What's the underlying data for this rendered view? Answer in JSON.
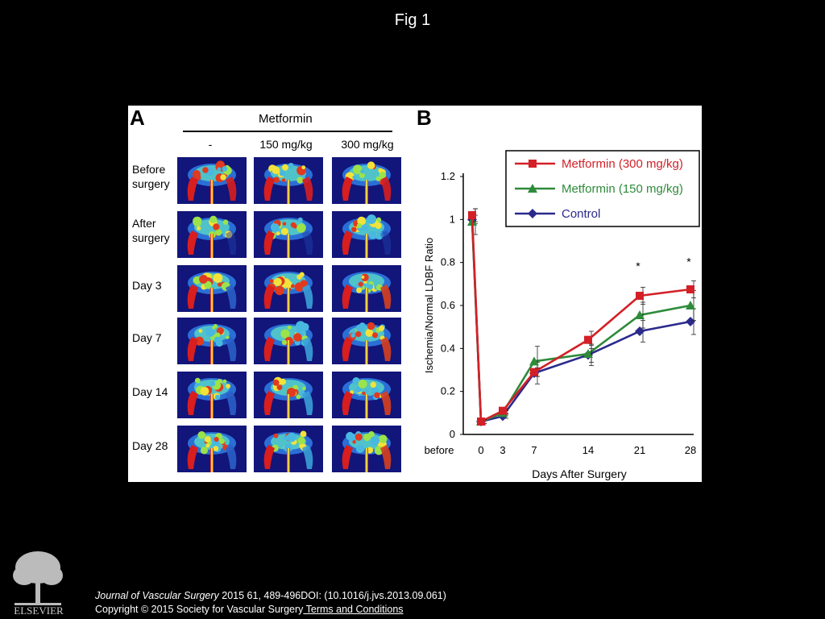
{
  "figure_title": "Fig 1",
  "panel_a": {
    "letter": "A",
    "drug": "Metformin",
    "doses": [
      "-",
      "150 mg/kg",
      "300 mg/kg"
    ],
    "rows": [
      "Before surgery",
      "After surgery",
      "Day 3",
      "Day 7",
      "Day 14",
      "Day 28"
    ]
  },
  "panel_b": {
    "letter": "B"
  },
  "chart_data": {
    "type": "line",
    "title": "",
    "xlabel": "Days After Surgery",
    "ylabel": "Ischemia/Normal LDBF Ratio",
    "categories": [
      "before",
      "0",
      "3",
      "7",
      "14",
      "21",
      "28"
    ],
    "ylim": [
      0,
      1.2
    ],
    "yticks": [
      "0",
      "0.2",
      "0.4",
      "0.6",
      "0.8",
      "1",
      "1.2"
    ],
    "legend_position": "top-right",
    "series": [
      {
        "name": "Metformin (300 mg/kg)",
        "color": "#d32027",
        "marker": "square",
        "values": [
          1.02,
          0.06,
          0.11,
          0.29,
          0.44,
          0.645,
          0.675
        ],
        "errors": [
          0.03,
          0.01,
          0.01,
          0.02,
          0.04,
          0.04,
          0.04
        ]
      },
      {
        "name": "Metformin (150 mg/kg)",
        "color": "#2e8b3a",
        "marker": "triangle",
        "values": [
          0.99,
          0.06,
          0.1,
          0.34,
          0.375,
          0.555,
          0.6
        ],
        "errors": [
          0.06,
          0.01,
          0.01,
          0.07,
          0.04,
          0.06,
          0.07
        ]
      },
      {
        "name": "Control",
        "color": "#2b2a8c",
        "marker": "diamond",
        "values": [
          1.0,
          0.06,
          0.085,
          0.285,
          0.37,
          0.48,
          0.525
        ],
        "errors": [
          0.02,
          0.01,
          0.01,
          0.05,
          0.05,
          0.05,
          0.06
        ]
      }
    ],
    "annotations": [
      {
        "category": "21",
        "y": 0.78,
        "text": "*"
      },
      {
        "category": "28",
        "y": 0.8,
        "text": "*"
      }
    ]
  },
  "footer": {
    "journal": "Journal of Vascular Surgery",
    "citation_rest": " 2015 61, 489-496DOI: (10.1016/j.jvs.2013.09.061)",
    "copyright": "Copyright © 2015 Society for Vascular Surgery",
    "terms_link": " Terms and Conditions",
    "publisher": "ELSEVIER"
  }
}
